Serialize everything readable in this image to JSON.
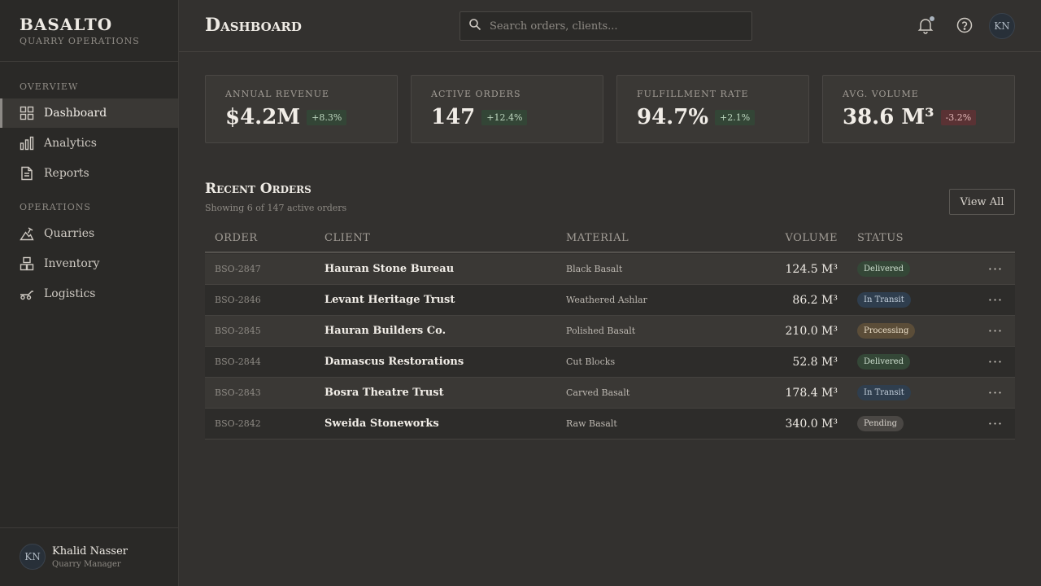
{
  "brand": {
    "name": "BASALTO",
    "subtitle": "QUARRY OPERATIONS"
  },
  "sidebar": {
    "sections": [
      {
        "label": "OVERVIEW",
        "items": [
          {
            "label": "Dashboard",
            "icon": "grid-icon",
            "active": true
          },
          {
            "label": "Analytics",
            "icon": "bar-chart-icon"
          },
          {
            "label": "Reports",
            "icon": "document-icon"
          }
        ]
      },
      {
        "label": "OPERATIONS",
        "items": [
          {
            "label": "Quarries",
            "icon": "mountain-pick-icon"
          },
          {
            "label": "Inventory",
            "icon": "blocks-icon"
          },
          {
            "label": "Logistics",
            "icon": "cart-icon"
          }
        ]
      }
    ],
    "user": {
      "initials": "KN",
      "name": "Khalid Nasser",
      "role": "Quarry Manager"
    }
  },
  "header": {
    "title": "Dashboard",
    "search_placeholder": "Search orders, clients...",
    "avatar_initials": "KN"
  },
  "stats": [
    {
      "label": "ANNUAL REVENUE",
      "value": "$4.2M",
      "change": "+8.3%",
      "trend": "up"
    },
    {
      "label": "ACTIVE ORDERS",
      "value": "147",
      "change": "+12.4%",
      "trend": "up"
    },
    {
      "label": "FULFILLMENT RATE",
      "value": "94.7%",
      "change": "+2.1%",
      "trend": "up"
    },
    {
      "label": "AVG. VOLUME",
      "value": "38.6 M³",
      "change": "-3.2%",
      "trend": "down"
    }
  ],
  "orders": {
    "title": "Recent Orders",
    "subtitle": "Showing 6 of 147 active orders",
    "view_all": "View All",
    "columns": [
      "ORDER",
      "CLIENT",
      "MATERIAL",
      "VOLUME",
      "STATUS"
    ],
    "rows": [
      {
        "id": "BSO-2847",
        "client": "Hauran Stone Bureau",
        "material": "Black Basalt",
        "volume": "124.5 M³",
        "status": "Delivered"
      },
      {
        "id": "BSO-2846",
        "client": "Levant Heritage Trust",
        "material": "Weathered Ashlar",
        "volume": "86.2 M³",
        "status": "In Transit"
      },
      {
        "id": "BSO-2845",
        "client": "Hauran Builders Co.",
        "material": "Polished Basalt",
        "volume": "210.0 M³",
        "status": "Processing"
      },
      {
        "id": "BSO-2844",
        "client": "Damascus Restorations",
        "material": "Cut Blocks",
        "volume": "52.8 M³",
        "status": "Delivered"
      },
      {
        "id": "BSO-2843",
        "client": "Bosra Theatre Trust",
        "material": "Carved Basalt",
        "volume": "178.4 M³",
        "status": "In Transit"
      },
      {
        "id": "BSO-2842",
        "client": "Sweida Stoneworks",
        "material": "Raw Basalt",
        "volume": "340.0 M³",
        "status": "Pending"
      }
    ],
    "more_glyph": "···"
  },
  "colors": {
    "background": "#33312f",
    "sidebar": "#2a2927",
    "positive": "#334536",
    "negative": "#5a3234",
    "in_transit": "#2f3e4e",
    "processing": "#5b4d38"
  }
}
